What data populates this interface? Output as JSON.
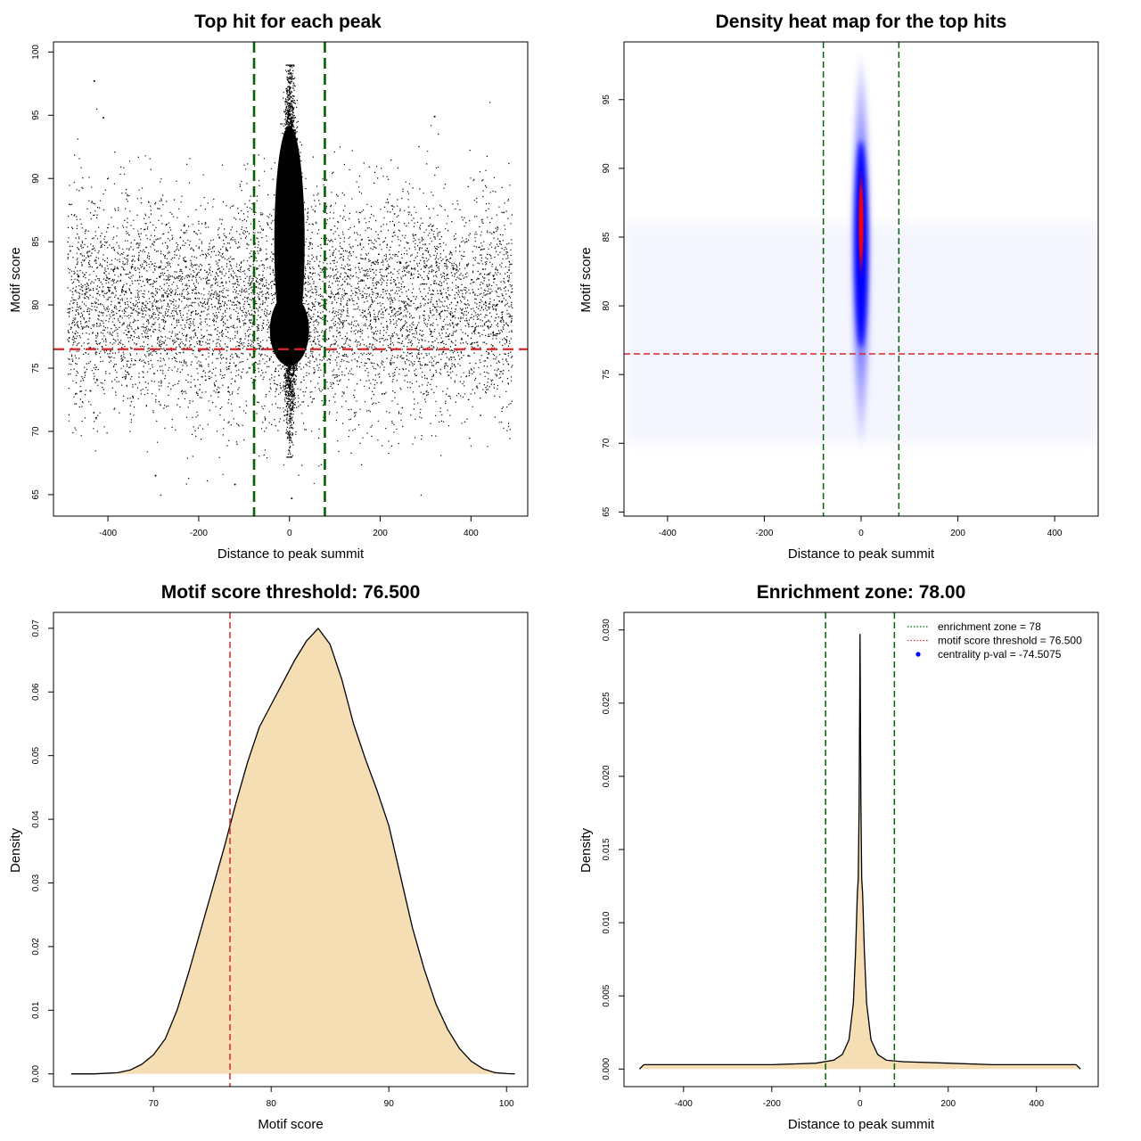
{
  "colors": {
    "threshold_line": "#d62728",
    "zone_line": "#006400",
    "density_fill": "#f5deb3",
    "heat_low": "#ffffff",
    "heat_mid": "#0000ff",
    "heat_high": "#ff0000",
    "legend_point": "#0000ff"
  },
  "chart_data": [
    {
      "id": "scatter",
      "type": "scatter",
      "title": "Top hit for each peak",
      "xlabel": "Distance to peak summit",
      "ylabel": "Motif score",
      "xlim": [
        -520,
        525
      ],
      "ylim": [
        63.3,
        100.8
      ],
      "xticks": [
        -400,
        -200,
        0,
        200,
        400
      ],
      "yticks": [
        65,
        70,
        75,
        80,
        85,
        90,
        95,
        100
      ],
      "vlines": [
        -78,
        78
      ],
      "hline": 76.5,
      "point_cloud": {
        "central": {
          "x_center": 0,
          "x_spread": 12,
          "y_range": [
            68,
            99
          ]
        },
        "background": {
          "x_range": [
            -490,
            490
          ],
          "y_range": [
            65,
            97
          ],
          "y_mode": 80
        }
      },
      "sample_points": [
        {
          "x": -430,
          "y": 97.7
        },
        {
          "x": -410,
          "y": 94.8
        },
        {
          "x": 320,
          "y": 94.9
        },
        {
          "x": -295,
          "y": 66.5
        },
        {
          "x": 5,
          "y": 64.7
        },
        {
          "x": -120,
          "y": 65.8
        }
      ],
      "grid": false
    },
    {
      "id": "heatmap",
      "type": "heatmap",
      "title": "Density heat map for the top hits",
      "xlabel": "Distance to peak summit",
      "ylabel": "Motif score",
      "xlim": [
        -490,
        490
      ],
      "ylim": [
        64.7,
        99.2
      ],
      "xticks": [
        -400,
        -200,
        0,
        200,
        400
      ],
      "yticks": [
        65,
        70,
        75,
        80,
        85,
        90,
        95
      ],
      "vlines": [
        -78,
        78
      ],
      "hline": 76.5,
      "hotspot": {
        "x": 0,
        "y_peak": 86,
        "y_range": [
          70,
          99
        ]
      },
      "grid": false
    },
    {
      "id": "score-density",
      "type": "area",
      "title": "Motif score threshold: 76.500",
      "xlabel": "Motif score",
      "ylabel": "Density",
      "xlim": [
        61.5,
        101.8
      ],
      "ylim": [
        -0.002,
        0.0725
      ],
      "xticks": [
        70,
        80,
        90,
        100
      ],
      "yticks": [
        0.0,
        0.01,
        0.02,
        0.03,
        0.04,
        0.05,
        0.06,
        0.07
      ],
      "ytick_labels": [
        "0.00",
        "0.01",
        "0.02",
        "0.03",
        "0.04",
        "0.05",
        "0.06",
        "0.07"
      ],
      "vline": 76.5,
      "x": [
        63,
        65,
        67,
        68,
        69,
        70,
        71,
        72,
        73,
        74,
        75,
        76,
        77,
        78,
        79,
        80,
        81,
        82,
        83,
        84,
        85,
        86,
        87,
        88,
        89,
        90,
        91,
        92,
        93,
        94,
        95,
        96,
        97,
        98,
        99,
        100,
        100.7
      ],
      "y": [
        0,
        0,
        0.0002,
        0.0006,
        0.0015,
        0.003,
        0.0055,
        0.01,
        0.016,
        0.0225,
        0.029,
        0.0355,
        0.0425,
        0.049,
        0.0545,
        0.058,
        0.0615,
        0.065,
        0.068,
        0.07,
        0.0675,
        0.062,
        0.055,
        0.0495,
        0.0445,
        0.039,
        0.031,
        0.023,
        0.0165,
        0.011,
        0.007,
        0.004,
        0.002,
        0.0008,
        0.0002,
        5e-05,
        0
      ],
      "grid": false
    },
    {
      "id": "distance-density",
      "type": "area",
      "title": "Enrichment zone: 78.00",
      "xlabel": "Distance to peak summit",
      "ylabel": "Density",
      "xlim": [
        -535,
        540
      ],
      "ylim": [
        -0.0012,
        0.0312
      ],
      "xticks": [
        -400,
        -200,
        0,
        200,
        400
      ],
      "yticks": [
        0.0,
        0.005,
        0.01,
        0.015,
        0.02,
        0.025,
        0.03
      ],
      "ytick_labels": [
        "0.000",
        "0.005",
        "0.010",
        "0.015",
        "0.020",
        "0.025",
        "0.030"
      ],
      "vlines": [
        -78,
        78
      ],
      "x": [
        -500,
        -490,
        -400,
        -300,
        -200,
        -100,
        -60,
        -40,
        -25,
        -15,
        -10,
        -6,
        -4,
        -2,
        0,
        2,
        4,
        6,
        10,
        15,
        25,
        40,
        60,
        100,
        200,
        300,
        400,
        490,
        500
      ],
      "y": [
        0,
        0.0003,
        0.0003,
        0.0003,
        0.0003,
        0.0004,
        0.0006,
        0.001,
        0.002,
        0.0045,
        0.008,
        0.012,
        0.013,
        0.018,
        0.0297,
        0.018,
        0.013,
        0.012,
        0.008,
        0.0045,
        0.002,
        0.001,
        0.0006,
        0.0005,
        0.0004,
        0.0003,
        0.0003,
        0.0003,
        0
      ],
      "legend": {
        "position": "top-right",
        "entries": [
          {
            "label": "enrichment zone = 78",
            "kind": "dotted-line",
            "color": "#006400"
          },
          {
            "label": "motif score threshold = 76.500",
            "kind": "dotted-line",
            "color": "#d62728"
          },
          {
            "label": "centrality p-val = -74.5075",
            "kind": "point",
            "color": "#0000ff"
          }
        ]
      },
      "grid": false
    }
  ]
}
